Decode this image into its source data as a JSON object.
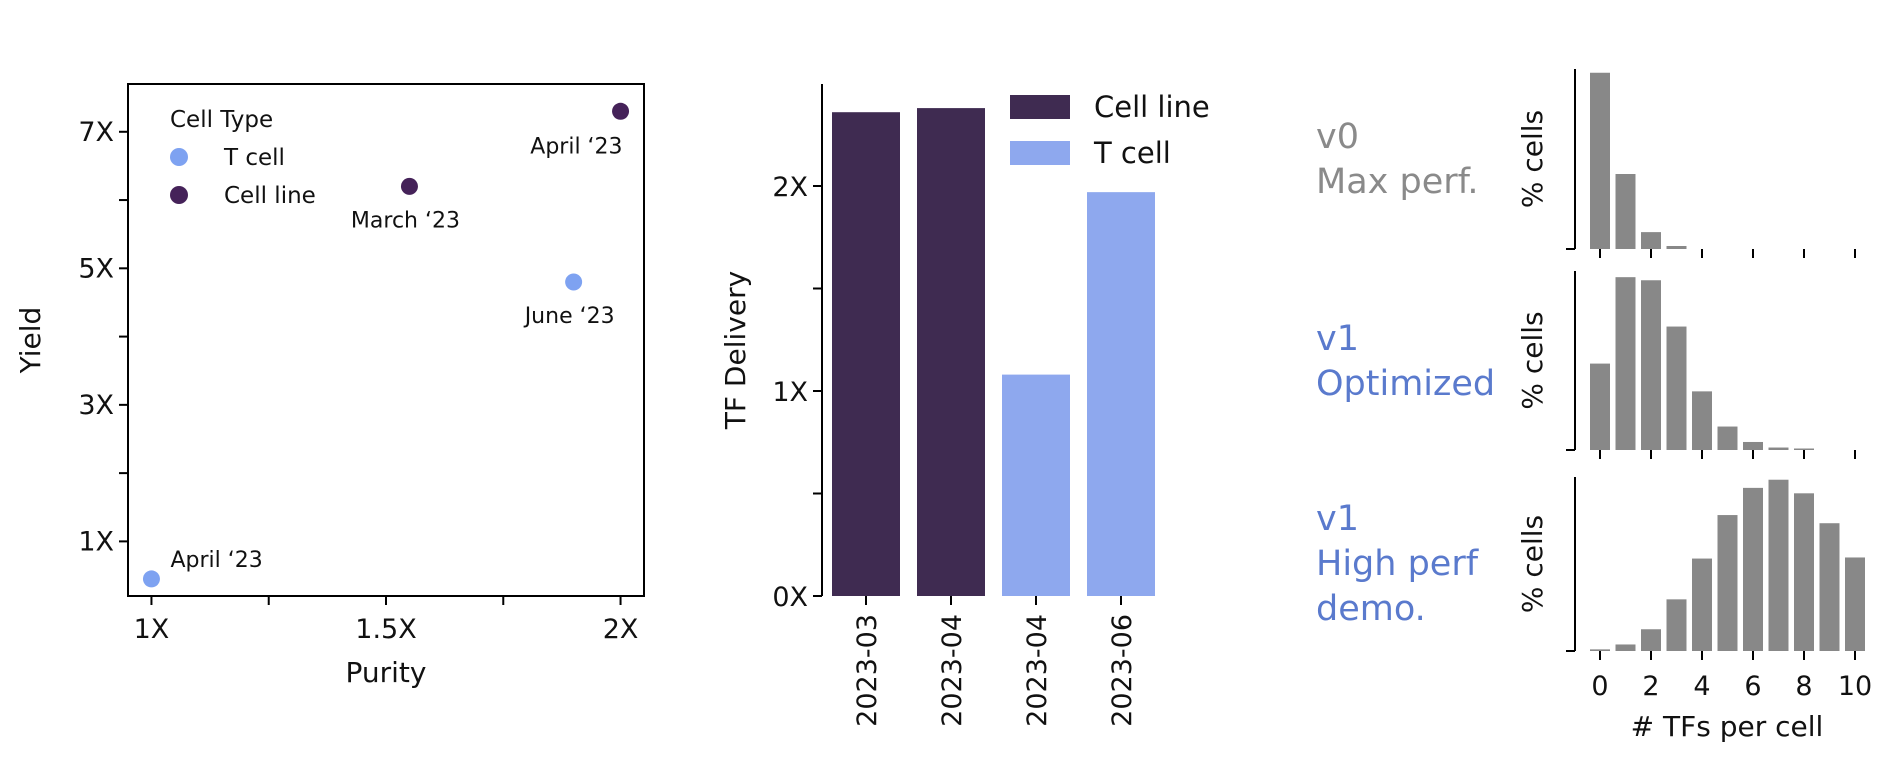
{
  "colors": {
    "t_cell": "#7ea2f1",
    "cell_line": "#452259",
    "bar_cell_line": "#3f2b51",
    "bar_t_cell": "#8ea8ee",
    "hist_bar": "#888888",
    "gray_text": "#8a8a8a",
    "blue_text": "#5a7acd"
  },
  "chart_data": [
    {
      "type": "scatter",
      "xlabel": "Purity",
      "ylabel": "Yield",
      "xlim": [
        0.95,
        2.05
      ],
      "ylim": [
        0.2,
        7.7
      ],
      "x_ticks": [
        {
          "value": 1,
          "label": "1X"
        },
        {
          "value": 1.25,
          "label": ""
        },
        {
          "value": 1.5,
          "label": "1.5X"
        },
        {
          "value": 1.75,
          "label": ""
        },
        {
          "value": 2,
          "label": "2X"
        }
      ],
      "y_ticks": [
        {
          "value": 1,
          "label": "1X"
        },
        {
          "value": 2,
          "label": ""
        },
        {
          "value": 3,
          "label": "3X"
        },
        {
          "value": 4,
          "label": ""
        },
        {
          "value": 5,
          "label": "5X"
        },
        {
          "value": 6,
          "label": ""
        },
        {
          "value": 7,
          "label": "7X"
        }
      ],
      "legend": {
        "title": "Cell Type",
        "placement": "top-left",
        "entries": [
          {
            "name": "T cell",
            "color_key": "t_cell"
          },
          {
            "name": "Cell line",
            "color_key": "cell_line"
          }
        ]
      },
      "points": [
        {
          "x": 1.0,
          "y": 0.45,
          "series": "T cell",
          "label": "April ‘23",
          "label_pos": "above-right"
        },
        {
          "x": 1.9,
          "y": 4.8,
          "series": "T cell",
          "label": "June ‘23",
          "label_pos": "below"
        },
        {
          "x": 1.55,
          "y": 6.2,
          "series": "Cell line",
          "label": "March ‘23",
          "label_pos": "below"
        },
        {
          "x": 2.0,
          "y": 7.3,
          "series": "Cell line",
          "label": "April ‘23",
          "label_pos": "below-left"
        }
      ]
    },
    {
      "type": "bar",
      "ylabel": "TF Delivery",
      "ylim": [
        0,
        2.5
      ],
      "categories": [
        "2023-03",
        "2023-04",
        "2023-04",
        "2023-06"
      ],
      "values": [
        2.36,
        2.38,
        1.08,
        1.97
      ],
      "series_of_bar": [
        "Cell line",
        "Cell line",
        "T cell",
        "T cell"
      ],
      "y_ticks": [
        {
          "value": 0,
          "label": "0X"
        },
        {
          "value": 0.5,
          "label": ""
        },
        {
          "value": 1,
          "label": "1X"
        },
        {
          "value": 1.5,
          "label": ""
        },
        {
          "value": 2,
          "label": "2X"
        }
      ],
      "legend": {
        "placement": "top-right",
        "entries": [
          {
            "name": "Cell line",
            "color_key": "bar_cell_line"
          },
          {
            "name": "T cell",
            "color_key": "bar_t_cell"
          }
        ]
      }
    },
    {
      "type": "bar",
      "title": "v0\nMax perf.",
      "title_lines": [
        "v0",
        "Max perf."
      ],
      "title_color_key": "gray_text",
      "ylabel": "% cells",
      "x": [
        0,
        1,
        2,
        3,
        4,
        5,
        6,
        7,
        8,
        9,
        10
      ],
      "values": [
        0.47,
        0.2,
        0.045,
        0.008,
        0,
        0,
        0,
        0,
        0,
        0,
        0
      ],
      "ylim": [
        0,
        0.48
      ]
    },
    {
      "type": "bar",
      "title": "v1\nOptimized",
      "title_lines": [
        "v1",
        "Optimized"
      ],
      "title_color_key": "blue_text",
      "ylabel": "% cells",
      "x": [
        0,
        1,
        2,
        3,
        4,
        5,
        6,
        7,
        8,
        9,
        10
      ],
      "values": [
        0.14,
        0.28,
        0.275,
        0.2,
        0.095,
        0.038,
        0.013,
        0.004,
        0.001,
        0,
        0
      ],
      "ylim": [
        0,
        0.29
      ]
    },
    {
      "type": "bar",
      "title": "v1\nHigh perf\ndemo.",
      "title_lines": [
        "v1",
        "High perf",
        "demo."
      ],
      "title_color_key": "blue_text",
      "ylabel": "% cells",
      "xlabel": "# TFs per cell",
      "x": [
        0,
        1,
        2,
        3,
        4,
        5,
        6,
        7,
        8,
        9,
        10
      ],
      "values": [
        0.003,
        0.012,
        0.04,
        0.095,
        0.17,
        0.25,
        0.3,
        0.315,
        0.29,
        0.235,
        0.172
      ],
      "ylim": [
        0,
        0.32
      ],
      "x_ticks": [
        {
          "value": 0,
          "label": "0"
        },
        {
          "value": 2,
          "label": "2"
        },
        {
          "value": 4,
          "label": "4"
        },
        {
          "value": 6,
          "label": "6"
        },
        {
          "value": 8,
          "label": "8"
        },
        {
          "value": 10,
          "label": "10"
        }
      ]
    }
  ]
}
